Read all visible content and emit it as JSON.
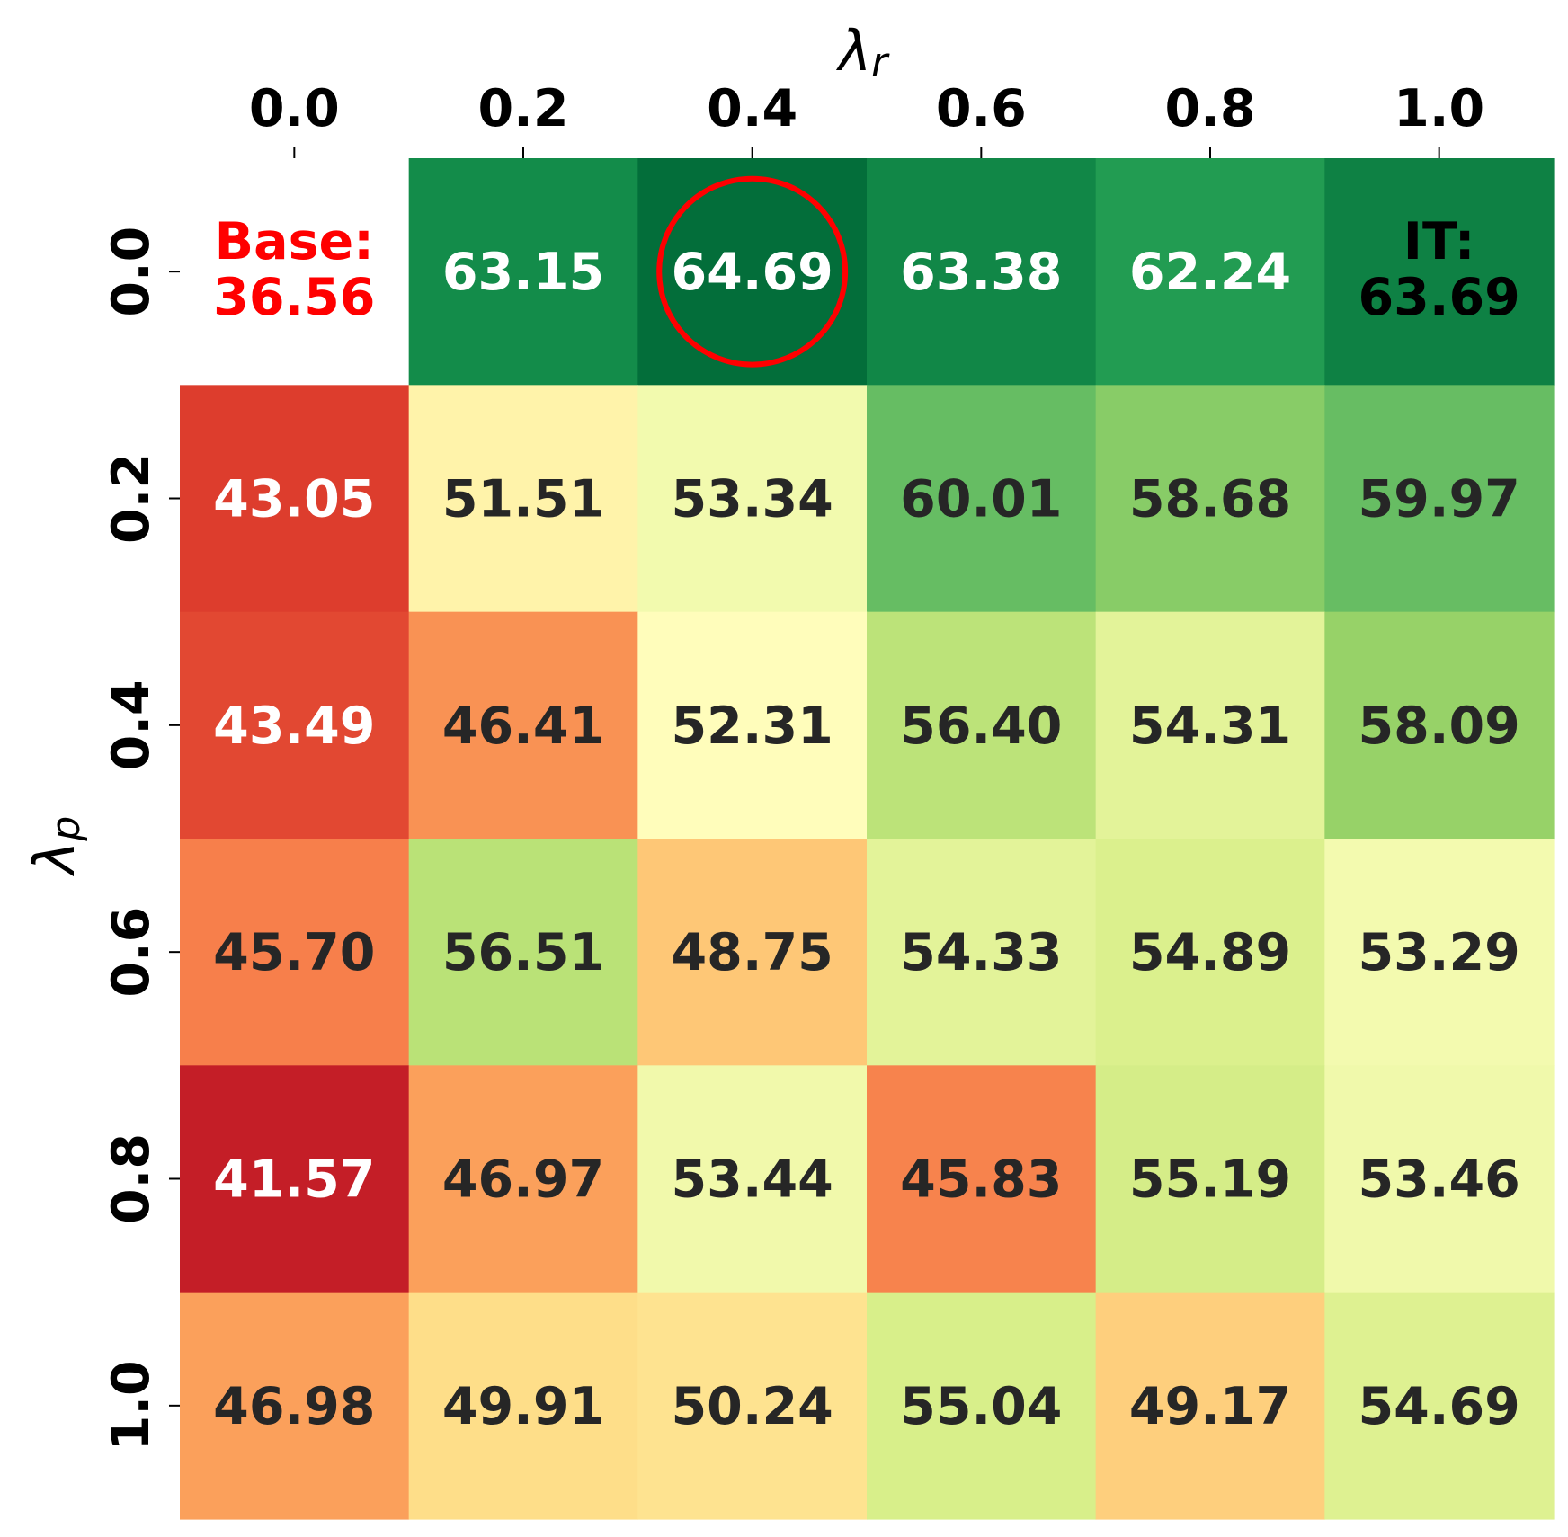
{
  "chart_data": {
    "type": "heatmap",
    "colormap": "RdYlGn",
    "color_range": [
      40,
      65
    ],
    "x_axis": {
      "label_symbol": "λ",
      "label_subscript": "r",
      "position": "top",
      "tick_labels": [
        "0.0",
        "0.2",
        "0.4",
        "0.6",
        "0.8",
        "1.0"
      ]
    },
    "y_axis": {
      "label_symbol": "λ",
      "label_subscript": "p",
      "position": "left",
      "tick_labels": [
        "0.0",
        "0.2",
        "0.4",
        "0.6",
        "0.8",
        "1.0"
      ]
    },
    "values": [
      [
        null,
        63.15,
        64.69,
        63.38,
        62.24,
        63.69
      ],
      [
        43.05,
        51.51,
        53.34,
        60.01,
        58.68,
        59.97
      ],
      [
        43.49,
        46.41,
        52.31,
        56.4,
        54.31,
        58.09
      ],
      [
        45.7,
        56.51,
        48.75,
        54.33,
        54.89,
        53.29
      ],
      [
        41.57,
        46.97,
        53.44,
        45.83,
        55.19,
        53.46
      ],
      [
        46.98,
        49.91,
        50.24,
        55.04,
        49.17,
        54.69
      ]
    ],
    "cell_labels": [
      [
        "",
        "63.15",
        "64.69",
        "63.38",
        "62.24",
        ""
      ],
      [
        "43.05",
        "51.51",
        "53.34",
        "60.01",
        "58.68",
        "59.97"
      ],
      [
        "43.49",
        "46.41",
        "52.31",
        "56.40",
        "54.31",
        "58.09"
      ],
      [
        "45.70",
        "56.51",
        "48.75",
        "54.33",
        "54.89",
        "53.29"
      ],
      [
        "41.57",
        "46.97",
        "53.44",
        "45.83",
        "55.19",
        "53.46"
      ],
      [
        "46.98",
        "49.91",
        "50.24",
        "55.04",
        "49.17",
        "54.69"
      ]
    ],
    "annotations": [
      {
        "row": 0,
        "col": 0,
        "lines": [
          "Base:",
          "36.56"
        ],
        "color": "#ff0000"
      },
      {
        "row": 0,
        "col": 5,
        "lines": [
          "IT:",
          "63.69"
        ],
        "color": "#000000"
      }
    ],
    "highlight": {
      "row": 0,
      "col": 2,
      "shape": "circle",
      "color": "#ff0000"
    },
    "text_colors": {
      "dark": "#262626",
      "light": "#ffffff"
    },
    "grid": false,
    "legend": "none"
  }
}
